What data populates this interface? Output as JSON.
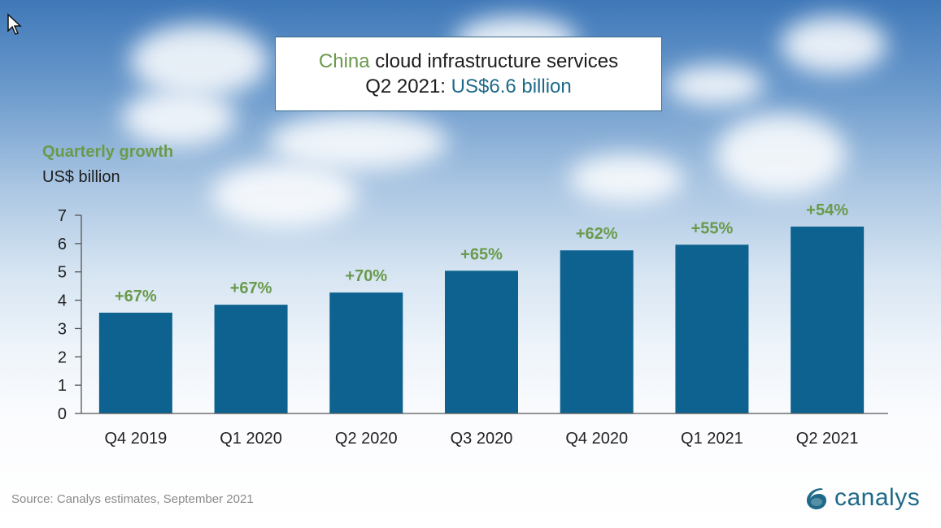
{
  "header": {
    "title_highlight": "China",
    "title_rest": " cloud infrastructure services",
    "line2_prefix": "Q2 2021: ",
    "line2_value": "US$6.6 billion"
  },
  "subtitle": {
    "growth_label": "Quarterly growth",
    "unit_label": "US$ billion"
  },
  "footer": {
    "source": "Source: Canalys estimates, September 2021",
    "logo_text": "canalys"
  },
  "colors": {
    "bar": "#0e628f",
    "growth_label": "#6a9a4c",
    "axis": "#555555",
    "tick_text": "#222222"
  },
  "chart_data": {
    "type": "bar",
    "title": "China cloud infrastructure services Q2 2021: US$6.6 billion",
    "xlabel": "",
    "ylabel": "US$ billion",
    "ylim": [
      0,
      7
    ],
    "yticks": [
      0,
      1,
      2,
      3,
      4,
      5,
      6,
      7
    ],
    "grid": false,
    "legend": "none",
    "categories": [
      "Q4 2019",
      "Q1 2020",
      "Q2 2020",
      "Q3 2020",
      "Q4 2020",
      "Q1 2021",
      "Q2 2021"
    ],
    "values": [
      3.56,
      3.84,
      4.27,
      5.04,
      5.76,
      5.96,
      6.6
    ],
    "annotations": [
      "+67%",
      "+67%",
      "+70%",
      "+65%",
      "+62%",
      "+55%",
      "+54%"
    ],
    "annotation_title": "Quarterly growth"
  }
}
